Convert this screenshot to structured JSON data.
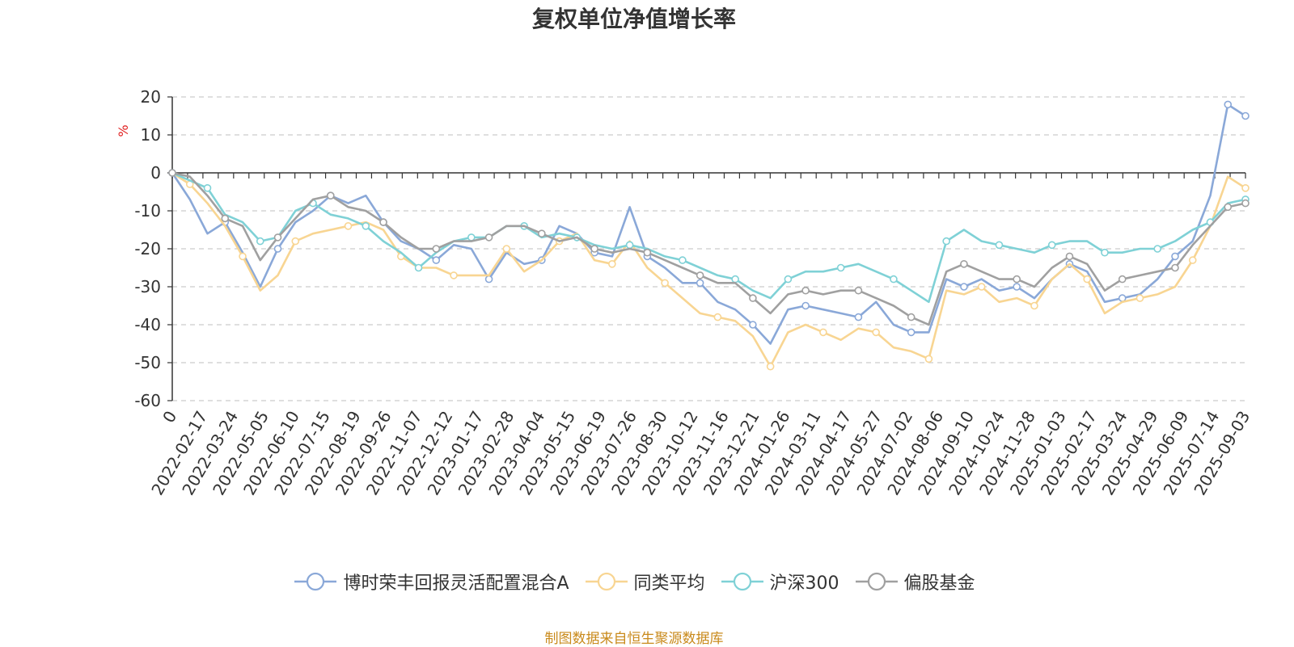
{
  "chart_data": {
    "type": "line",
    "title": "复权单位净值增长率",
    "ylabel": "%",
    "ylim": [
      -60,
      20
    ],
    "yticks": [
      20,
      10,
      0,
      -10,
      -20,
      -30,
      -40,
      -50,
      -60
    ],
    "x_tick_labels": [
      "0",
      "2022-02-17",
      "2022-03-24",
      "2022-05-05",
      "2022-06-10",
      "2022-07-15",
      "2022-08-19",
      "2022-09-26",
      "2022-11-07",
      "2022-12-12",
      "2023-01-17",
      "2023-02-28",
      "2023-04-04",
      "2023-05-15",
      "2023-06-19",
      "2023-07-26",
      "2023-08-30",
      "2023-10-12",
      "2023-11-16",
      "2023-12-21",
      "2024-01-26",
      "2024-03-11",
      "2024-04-17",
      "2024-05-27",
      "2024-07-02",
      "2024-08-06",
      "2024-09-10",
      "2024-10-24",
      "2024-11-28",
      "2025-01-03",
      "2025-02-17",
      "2025-03-24",
      "2025-04-29",
      "2025-06-09",
      "2025-07-14",
      "2025-09-03"
    ],
    "grid": true,
    "legend_position": "bottom",
    "series": [
      {
        "name": "博时荣丰回报灵活配置混合A",
        "color": "#8aa8d8",
        "values": [
          0,
          -7,
          -16,
          -13,
          -21,
          -30,
          -20,
          -13,
          -10,
          -6,
          -8,
          -6,
          -13,
          -18,
          -20,
          -23,
          -19,
          -20,
          -28,
          -21,
          -24,
          -23,
          -14,
          -16,
          -21,
          -22,
          -9,
          -22,
          -25,
          -29,
          -29,
          -34,
          -36,
          -40,
          -45,
          -36,
          -35,
          -36,
          -37,
          -38,
          -34,
          -40,
          -42,
          -42,
          -28,
          -30,
          -28,
          -31,
          -30,
          -33,
          -28,
          -24,
          -26,
          -34,
          -33,
          -32,
          -28,
          -22,
          -18,
          -6,
          18,
          15
        ]
      },
      {
        "name": "同类平均",
        "color": "#f8d592",
        "values": [
          0,
          -3,
          -8,
          -14,
          -22,
          -31,
          -27,
          -18,
          -16,
          -15,
          -14,
          -13,
          -15,
          -22,
          -25,
          -25,
          -27,
          -27,
          -27,
          -20,
          -26,
          -23,
          -18,
          -16,
          -23,
          -24,
          -18,
          -25,
          -29,
          -33,
          -37,
          -38,
          -39,
          -43,
          -51,
          -42,
          -40,
          -42,
          -44,
          -41,
          -42,
          -46,
          -47,
          -49,
          -31,
          -32,
          -30,
          -34,
          -33,
          -35,
          -28,
          -24,
          -28,
          -37,
          -34,
          -33,
          -32,
          -30,
          -23,
          -14,
          -1,
          -4
        ]
      },
      {
        "name": "沪深300",
        "color": "#7fd1d6",
        "values": [
          0,
          -2,
          -4,
          -11,
          -13,
          -18,
          -17,
          -10,
          -8,
          -11,
          -12,
          -14,
          -18,
          -21,
          -25,
          -21,
          -18,
          -17,
          -17,
          -14,
          -14,
          -17,
          -16,
          -17,
          -19,
          -20,
          -19,
          -20,
          -22,
          -23,
          -25,
          -27,
          -28,
          -31,
          -33,
          -28,
          -26,
          -26,
          -25,
          -24,
          -26,
          -28,
          -31,
          -34,
          -18,
          -15,
          -18,
          -19,
          -20,
          -21,
          -19,
          -18,
          -18,
          -21,
          -21,
          -20,
          -20,
          -18,
          -15,
          -13,
          -8,
          -7
        ]
      },
      {
        "name": "偏股基金",
        "color": "#a0a0a0",
        "values": [
          0,
          -1,
          -6,
          -12,
          -14,
          -23,
          -17,
          -12,
          -7,
          -6,
          -9,
          -10,
          -13,
          -17,
          -20,
          -20,
          -18,
          -18,
          -17,
          -14,
          -14,
          -16,
          -18,
          -17,
          -20,
          -21,
          -20,
          -21,
          -23,
          -25,
          -27,
          -29,
          -29,
          -33,
          -37,
          -32,
          -31,
          -32,
          -31,
          -31,
          -33,
          -35,
          -38,
          -40,
          -26,
          -24,
          -26,
          -28,
          -28,
          -30,
          -25,
          -22,
          -24,
          -31,
          -28,
          -27,
          -26,
          -25,
          -19,
          -14,
          -9,
          -8
        ]
      }
    ]
  },
  "source": "制图数据来自恒生聚源数据库"
}
